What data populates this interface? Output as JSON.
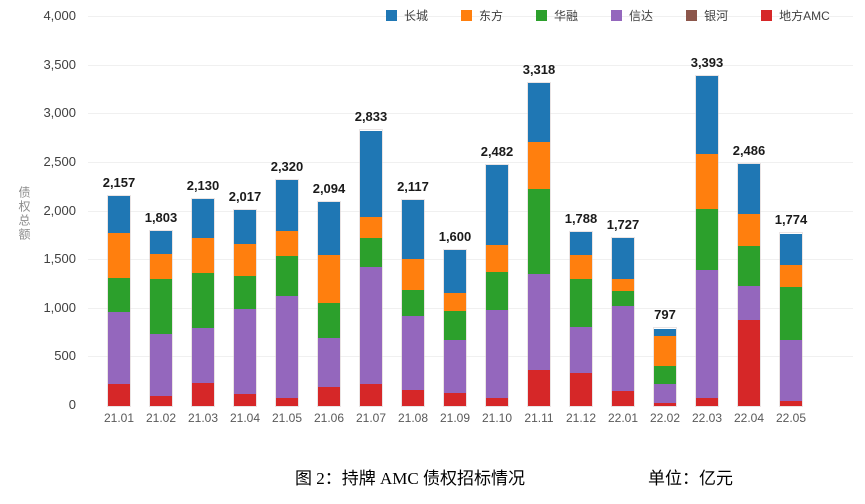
{
  "figure": {
    "caption": "图 2：持牌 AMC 债权招标情况",
    "unit_label": "单位：亿元"
  },
  "chart_data": {
    "type": "bar",
    "stacked": true,
    "title": "",
    "xlabel": "",
    "ylabel": "债权总额",
    "ylim": [
      0,
      4000
    ],
    "ytick_step": 500,
    "grid": "horizontal-faint",
    "legend_position": "top-center",
    "categories": [
      "21.01",
      "21.02",
      "21.03",
      "21.04",
      "21.05",
      "21.06",
      "21.07",
      "21.08",
      "21.09",
      "21.10",
      "21.11",
      "21.12",
      "22.01",
      "22.02",
      "22.03",
      "22.04",
      "22.05"
    ],
    "totals": [
      2157,
      1803,
      2130,
      2017,
      2320,
      2094,
      2833,
      2117,
      1600,
      2482,
      3318,
      1788,
      1727,
      797,
      3393,
      2486,
      1774
    ],
    "totals_display": [
      "2,157",
      "1,803",
      "2,130",
      "2,017",
      "2,320",
      "2,094",
      "2,833",
      "2,117",
      "1,600",
      "2,482",
      "3,318",
      "1,788",
      "1,727",
      "797",
      "3,393",
      "2,486",
      "1,774"
    ],
    "series": [
      {
        "name": "长城",
        "color": "#1f77b4",
        "values": [
          380,
          237,
          400,
          356,
          521,
          536,
          889,
          610,
          436,
          831,
          602,
          236,
          419,
          75,
          805,
          508,
          319
        ]
      },
      {
        "name": "东方",
        "color": "#ff7f0e",
        "values": [
          465,
          265,
          360,
          322,
          257,
          497,
          214,
          309,
          189,
          274,
          481,
          251,
          127,
          310,
          566,
          333,
          232
        ]
      },
      {
        "name": "华融",
        "color": "#2ca02c",
        "values": [
          345,
          560,
          567,
          340,
          412,
          361,
          301,
          274,
          292,
          391,
          875,
          491,
          154,
          185,
          628,
          406,
          540
        ]
      },
      {
        "name": "信达",
        "color": "#9467bd",
        "values": [
          740,
          635,
          566,
          879,
          1045,
          505,
          1199,
          759,
          548,
          906,
          990,
          470,
          876,
          192,
          1312,
          350,
          635
        ]
      },
      {
        "name": "银河",
        "color": "#8c564b",
        "values": [
          0,
          0,
          0,
          0,
          0,
          0,
          0,
          0,
          0,
          0,
          0,
          0,
          0,
          0,
          0,
          0,
          0
        ]
      },
      {
        "name": "地方AMC",
        "color": "#d62728",
        "values": [
          227,
          106,
          237,
          120,
          85,
          195,
          230,
          165,
          135,
          80,
          370,
          340,
          151,
          35,
          82,
          889,
          48
        ]
      }
    ]
  }
}
